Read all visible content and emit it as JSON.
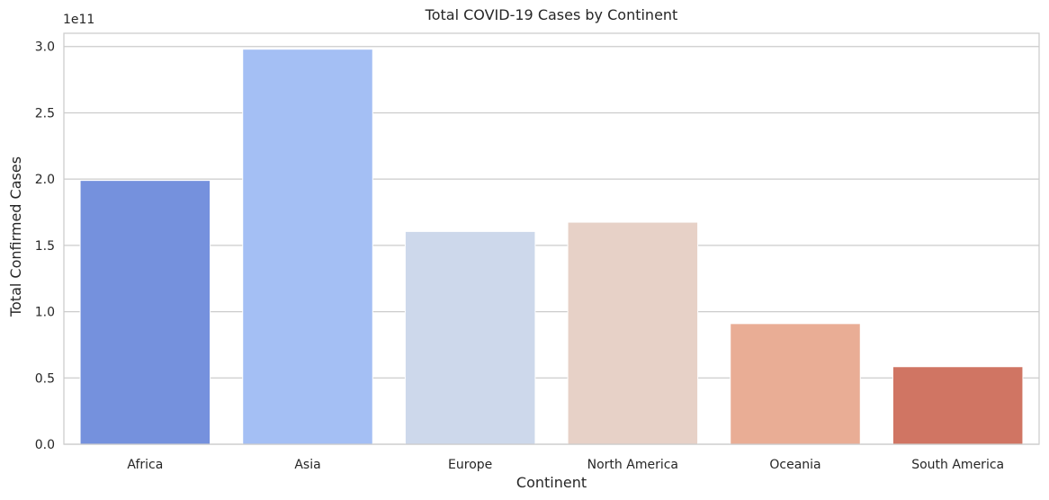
{
  "chart_data": {
    "type": "bar",
    "title": "Total COVID-19 Cases by Continent",
    "xlabel": "Continent",
    "ylabel": "Total Confirmed Cases",
    "y_offset_label": "1e11",
    "y_scale": 100000000000,
    "categories": [
      "Africa",
      "Asia",
      "Europe",
      "North America",
      "Oceania",
      "South America"
    ],
    "values": [
      199000000000,
      298000000000,
      160500000000,
      167500000000,
      91000000000,
      58500000000
    ],
    "colors": [
      "#7591dd",
      "#a4bff4",
      "#cdd8eb",
      "#e7d1c7",
      "#e9ad95",
      "#d07563"
    ],
    "ylim": [
      0,
      310000000000
    ],
    "yticks": [
      0,
      50000000000,
      100000000000,
      150000000000,
      200000000000,
      250000000000,
      300000000000
    ],
    "ytick_labels": [
      "0.0",
      "0.5",
      "1.0",
      "1.5",
      "2.0",
      "2.5",
      "3.0"
    ],
    "grid": true,
    "legend": false
  }
}
